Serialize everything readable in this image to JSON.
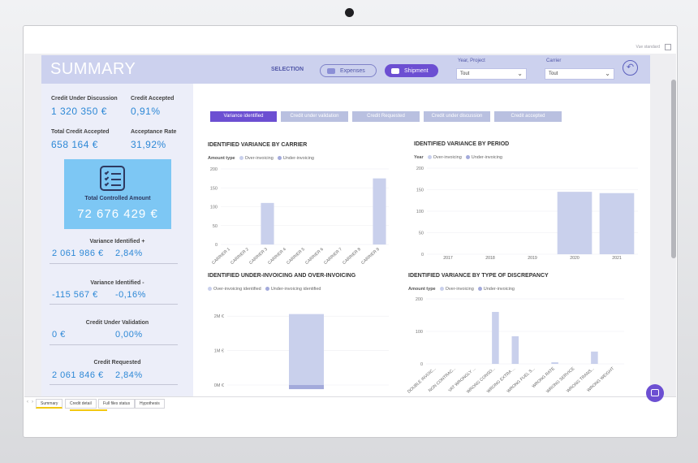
{
  "window": {
    "view_label": "Vue standard"
  },
  "header": {
    "title": "SUMMARY",
    "selection_label": "SELECTION",
    "expenses_label": "Expenses",
    "shipment_label": "Shipment",
    "filter_year_label": "Year, Project",
    "filter_year_value": "Tout",
    "filter_carrier_label": "Carrier",
    "filter_carrier_value": "Tout"
  },
  "kpis": {
    "credit_under_discussion": {
      "label": "Credit Under Discussion",
      "value": "1 320 350 €"
    },
    "credit_accepted": {
      "label": "Credit Accepted",
      "value": "0,91%"
    },
    "total_credit_accepted": {
      "label": "Total Credit Accepted",
      "value": "658 164 €"
    },
    "acceptance_rate": {
      "label": "Acceptance Rate",
      "value": "31,92%"
    },
    "total_controlled_amount": {
      "label": "Total Controlled Amount",
      "value": "72 676 429 €"
    },
    "variance_plus": {
      "label": "Variance Identified +",
      "amount": "2 061 986 €",
      "pct": "2,84%"
    },
    "variance_minus": {
      "label": "Variance Identified -",
      "amount": "-115 567 €",
      "pct": "-0,16%"
    },
    "under_validation": {
      "label": "Credit Under Validation",
      "amount": "0 €",
      "pct": "0,00%"
    },
    "requested": {
      "label": "Credit Requested",
      "amount": "2 061 846 €",
      "pct": "2,84%"
    }
  },
  "tabs": [
    "Variance identified",
    "Credit under validation",
    "Credit Requested",
    "Credit under discussion",
    "Credit accepted"
  ],
  "colors": {
    "accent": "#6c4fd2",
    "bar": "#c9d0ec",
    "over": "#c9d0ec",
    "under": "#a3aadb",
    "kpi_blue": "#2d88d6",
    "card": "#7dc7f4"
  },
  "charts": {
    "by_carrier": {
      "title": "IDENTIFIED VARIANCE BY CARRIER",
      "legend_key": "Amount type",
      "legend_items": [
        "Over-invoicing",
        "Under-invoicing"
      ],
      "ticks": [
        "0",
        "50",
        "100",
        "150",
        "200"
      ]
    },
    "by_period": {
      "title": "IDENTIFIED VARIANCE BY PERIOD",
      "legend_key": "Year",
      "legend_items": [
        "Over-invoicing",
        "Under-invoicing"
      ],
      "ticks": [
        "0",
        "50",
        "100",
        "150",
        "200"
      ]
    },
    "under_over": {
      "title": "IDENTIFIED UNDER-INVOICING AND OVER-INVOICING",
      "legend_items": [
        "Over-invoicing identified",
        "Under-invoicing identified"
      ],
      "ticks": [
        "0M €",
        "1M €",
        "2M €"
      ]
    },
    "by_discrepancy": {
      "title": "IDENTIFIED VARIANCE BY TYPE OF DISCREPANCY",
      "legend_key": "Amount type",
      "legend_items": [
        "Over-invoicing",
        "Under-invoicing"
      ],
      "ticks": [
        "0",
        "100",
        "200"
      ]
    }
  },
  "chart_data": [
    {
      "type": "bar",
      "title": "IDENTIFIED VARIANCE BY CARRIER",
      "categories": [
        "CARRIER 1",
        "CARRIER 2",
        "CARRIER 3",
        "CARRIER 4",
        "CARRIER 5",
        "CARRIER 6",
        "CARRIER 7",
        "CARRIER 8",
        "CARRIER 9"
      ],
      "series": [
        {
          "name": "Over-invoicing",
          "values": [
            0,
            0,
            110,
            0,
            0,
            0,
            0,
            0,
            175
          ]
        }
      ],
      "ylim": [
        0,
        200
      ]
    },
    {
      "type": "bar",
      "title": "IDENTIFIED VARIANCE BY PERIOD",
      "categories": [
        "2017",
        "2018",
        "2019",
        "2020",
        "2021"
      ],
      "series": [
        {
          "name": "Over-invoicing",
          "values": [
            0,
            0,
            0,
            145,
            142
          ]
        }
      ],
      "ylim": [
        0,
        200
      ]
    },
    {
      "type": "bar",
      "title": "IDENTIFIED UNDER-INVOICING AND OVER-INVOICING",
      "categories": [
        ""
      ],
      "series": [
        {
          "name": "Over-invoicing identified",
          "values": [
            2.06
          ]
        },
        {
          "name": "Under-invoicing identified",
          "values": [
            0.12
          ]
        }
      ],
      "ylabel": "M €",
      "ylim": [
        0,
        2.5
      ]
    },
    {
      "type": "bar",
      "title": "IDENTIFIED VARIANCE BY TYPE OF DISCREPANCY",
      "categories": [
        "DOUBLE INVOIC...",
        "NON CONTRAC...",
        "VAT WRONGLY ...",
        "WRONG CONSO...",
        "WRONG EXTRA ...",
        "WRONG FUEL S...",
        "WRONG RATE",
        "WRONG SERVICE",
        "WRONG TRANS...",
        "WRONG WEIGHT"
      ],
      "series": [
        {
          "name": "Over-invoicing",
          "values": [
            0,
            0,
            0,
            160,
            85,
            0,
            5,
            0,
            38,
            0
          ]
        }
      ],
      "ylim": [
        0,
        200
      ]
    }
  ],
  "page_tabs": [
    "Summary",
    "Credit detail",
    "Full files status",
    "Hypothesis"
  ]
}
